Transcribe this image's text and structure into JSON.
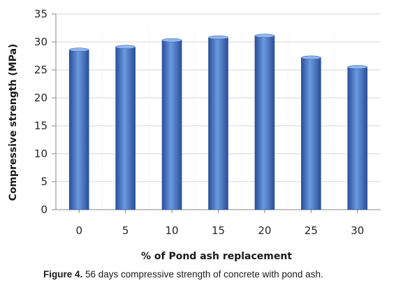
{
  "chart_data": {
    "type": "bar",
    "categories": [
      "0",
      "5",
      "10",
      "15",
      "20",
      "25",
      "30"
    ],
    "values": [
      28.6,
      29.1,
      30.3,
      30.8,
      31.1,
      27.2,
      25.5
    ],
    "xlabel": "% of Pond ash replacement",
    "ylabel": "Compressive strength (MPa)",
    "ylim": [
      0,
      35
    ],
    "yticks": [
      0,
      5,
      10,
      15,
      20,
      25,
      30,
      35
    ],
    "grid": true,
    "bar_color": "#3f6fbf"
  },
  "caption": {
    "label": "Figure 4.",
    "text": " 56 days compressive strength of concrete with pond ash."
  }
}
